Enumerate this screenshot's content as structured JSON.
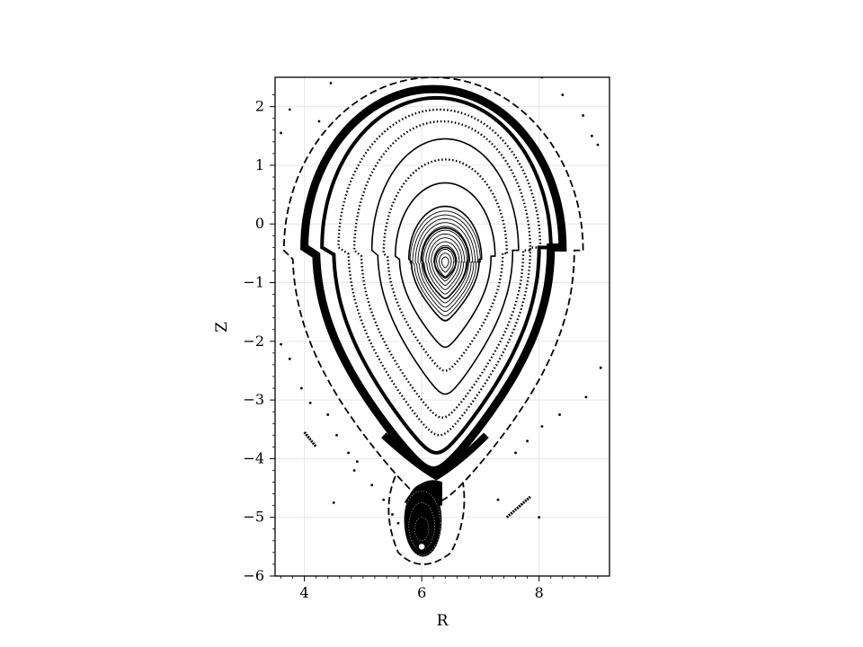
{
  "chart_data": {
    "type": "scatter",
    "title": "",
    "xlabel": "R",
    "ylabel": "Z",
    "xlim": [
      3.5,
      9.2
    ],
    "ylim": [
      -6.0,
      2.5
    ],
    "xticks": [
      4,
      6,
      8
    ],
    "yticks": [
      2,
      1,
      0,
      -1,
      -2,
      -3,
      -4,
      -5,
      -6
    ],
    "xtick_labels": [
      "4",
      "6",
      "8"
    ],
    "ytick_labels": [
      "2",
      "1",
      "0",
      "−1",
      "−2",
      "−3",
      "−4",
      "−5",
      "−6"
    ],
    "grid": true,
    "legend": "none",
    "marker_color": "#000000",
    "magnetic_axis": [
      6.4,
      -0.65
    ],
    "x_point": [
      6.25,
      -4.3
    ],
    "lower_o_point": [
      6.0,
      -5.5
    ],
    "nested_surfaces": [
      {
        "center": [
          6.4,
          -0.65
        ],
        "rx_top": 0.18,
        "rx_bottom": 0.18,
        "up": 0.25,
        "down": 0.27,
        "style": "solid"
      },
      {
        "center": [
          6.4,
          -0.62
        ],
        "rx_top": 0.4,
        "rx_bottom": 0.38,
        "up": 0.55,
        "down": 0.65,
        "style": "solid"
      },
      {
        "center": [
          6.4,
          -0.6
        ],
        "rx_top": 0.62,
        "rx_bottom": 0.58,
        "up": 0.9,
        "down": 1.05,
        "style": "solid"
      },
      {
        "center": [
          6.4,
          -0.55
        ],
        "rx_top": 0.85,
        "rx_bottom": 0.78,
        "up": 1.25,
        "down": 1.55,
        "style": "solid"
      },
      {
        "center": [
          6.4,
          -0.5
        ],
        "rx_top": 1.05,
        "rx_bottom": 0.98,
        "up": 1.6,
        "down": 2.0,
        "style": "dotted"
      },
      {
        "center": [
          6.4,
          -0.45
        ],
        "rx_top": 1.25,
        "rx_bottom": 1.15,
        "up": 1.9,
        "down": 2.45,
        "style": "solid"
      },
      {
        "center": [
          6.35,
          -0.45
        ],
        "rx_top": 1.5,
        "rx_bottom": 1.38,
        "up": 2.2,
        "down": 2.85,
        "style": "dotted"
      },
      {
        "center": [
          6.3,
          -0.4
        ],
        "rx_top": 1.72,
        "rx_bottom": 1.55,
        "up": 2.35,
        "down": 3.2,
        "style": "dotted"
      },
      {
        "center": [
          6.25,
          -0.4
        ],
        "rx_top": 1.95,
        "rx_bottom": 1.75,
        "up": 2.55,
        "down": 3.5,
        "style": "solid-thick"
      },
      {
        "center": [
          6.2,
          -0.4
        ],
        "rx_top": 2.2,
        "rx_bottom": 2.0,
        "up": 2.7,
        "down": 3.8,
        "style": "separatrix"
      },
      {
        "center": [
          6.2,
          -0.45
        ],
        "rx_top": 2.55,
        "rx_bottom": 2.4,
        "up": 2.95,
        "down": 4.3,
        "style": "dashed"
      }
    ],
    "lower_island_surfaces": [
      {
        "center": [
          6.0,
          -5.2
        ],
        "rx": 0.12,
        "ry": 0.2
      },
      {
        "center": [
          6.0,
          -5.15
        ],
        "rx": 0.22,
        "ry": 0.4
      },
      {
        "center": [
          6.0,
          -5.1
        ],
        "rx": 0.32,
        "ry": 0.55
      }
    ],
    "stray_segments": [
      {
        "from": [
          4.0,
          -3.55
        ],
        "to": [
          4.2,
          -3.8
        ]
      },
      {
        "from": [
          7.45,
          -5.0
        ],
        "to": [
          7.85,
          -4.65
        ]
      }
    ],
    "stray_points": [
      [
        4.45,
        2.4
      ],
      [
        3.75,
        1.95
      ],
      [
        3.6,
        1.55
      ],
      [
        4.25,
        1.75
      ],
      [
        8.05,
        2.5
      ],
      [
        8.4,
        2.2
      ],
      [
        8.75,
        1.85
      ],
      [
        8.9,
        1.5
      ],
      [
        9.0,
        1.35
      ],
      [
        3.6,
        -2.05
      ],
      [
        3.75,
        -2.3
      ],
      [
        3.95,
        -2.8
      ],
      [
        4.1,
        -3.05
      ],
      [
        4.4,
        -3.25
      ],
      [
        4.55,
        -3.6
      ],
      [
        4.75,
        -3.9
      ],
      [
        4.85,
        -4.2
      ],
      [
        5.15,
        -4.45
      ],
      [
        5.35,
        -4.7
      ],
      [
        5.5,
        -4.95
      ],
      [
        4.5,
        -4.75
      ],
      [
        8.8,
        -2.95
      ],
      [
        8.35,
        -3.25
      ],
      [
        8.05,
        -3.45
      ],
      [
        7.8,
        -3.7
      ],
      [
        7.3,
        -4.7
      ],
      [
        8.0,
        -5.0
      ],
      [
        9.05,
        -2.45
      ],
      [
        4.9,
        -4.05
      ],
      [
        7.6,
        -3.9
      ],
      [
        5.6,
        -5.1
      ]
    ]
  }
}
